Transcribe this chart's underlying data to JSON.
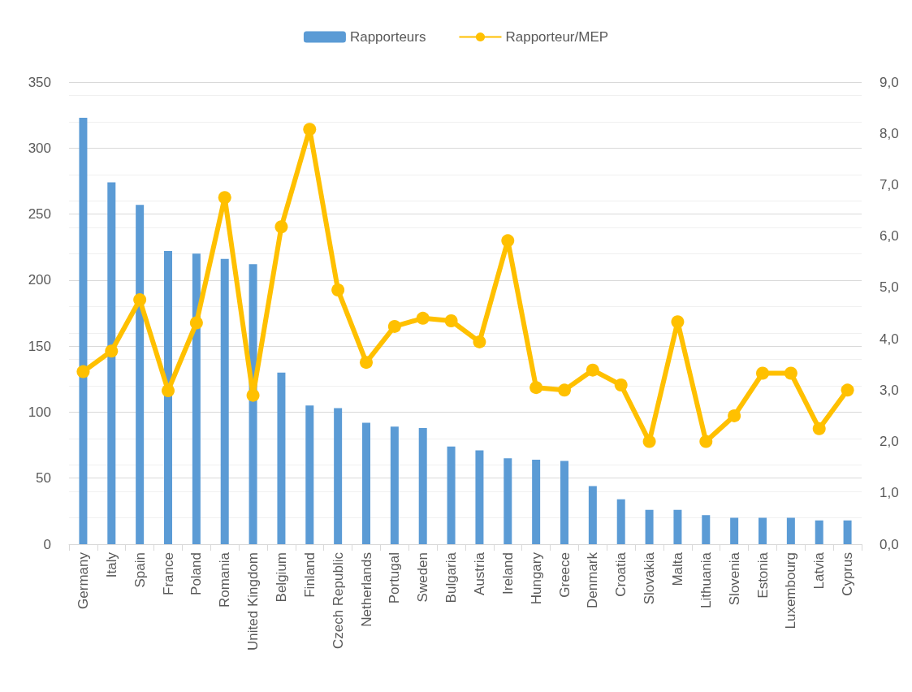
{
  "chart_data": {
    "type": "bar",
    "categories": [
      "Germany",
      "Italy",
      "Spain",
      "France",
      "Poland",
      "Romania",
      "United Kingdom",
      "Belgium",
      "Finland",
      "Czech Republic",
      "Netherlands",
      "Portugal",
      "Sweden",
      "Bulgaria",
      "Austria",
      "Ireland",
      "Hungary",
      "Greece",
      "Denmark",
      "Croatia",
      "Slovakia",
      "Malta",
      "Lithuania",
      "Slovenia",
      "Estonia",
      "Luxembourg",
      "Latvia",
      "Cyprus"
    ],
    "series": [
      {
        "name": "Rapporteurs",
        "color": "#5b9bd5",
        "values": [
          323,
          274,
          257,
          222,
          220,
          216,
          212,
          130,
          105,
          103,
          92,
          89,
          88,
          74,
          71,
          65,
          64,
          63,
          44,
          34,
          26,
          26,
          22,
          20,
          20,
          20,
          18,
          18
        ]
      },
      {
        "name": "Rapporteur/MEP",
        "type": "line",
        "axis": "y2",
        "color": "#ffc000",
        "marker": "circle",
        "values": [
          3.36,
          3.76,
          4.76,
          2.99,
          4.31,
          6.75,
          2.9,
          6.18,
          8.08,
          4.95,
          3.54,
          4.24,
          4.4,
          4.35,
          3.94,
          5.91,
          3.05,
          3.0,
          3.39,
          3.1,
          2.0,
          4.33,
          2.0,
          2.5,
          3.33,
          3.33,
          2.25,
          3.0
        ]
      }
    ],
    "ylim": [
      0,
      350
    ],
    "yticks": [
      0,
      50,
      100,
      150,
      200,
      250,
      300,
      350
    ],
    "y2lim": [
      0,
      9
    ],
    "y2ticks": [
      {
        "value": 0,
        "label": "0,0"
      },
      {
        "value": 1,
        "label": "1,0"
      },
      {
        "value": 2,
        "label": "2,0"
      },
      {
        "value": 3,
        "label": "3,0"
      },
      {
        "value": 4,
        "label": "4,0"
      },
      {
        "value": 5,
        "label": "5,0"
      },
      {
        "value": 6,
        "label": "6,0"
      },
      {
        "value": 7,
        "label": "7,0"
      },
      {
        "value": 8,
        "label": "8,0"
      },
      {
        "value": 9,
        "label": "9,0"
      }
    ],
    "grid": "y",
    "legend": "top"
  }
}
